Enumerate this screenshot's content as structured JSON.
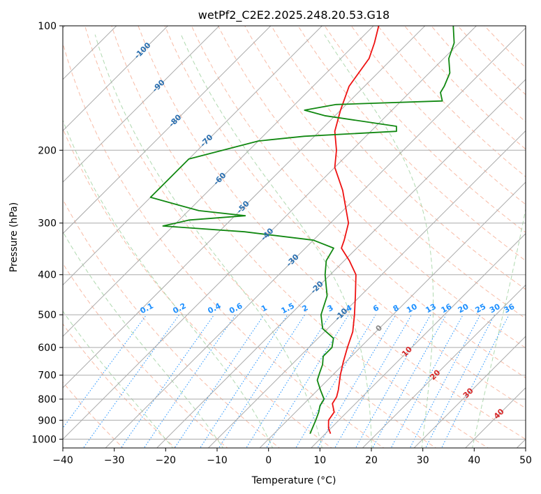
{
  "chart_data": {
    "type": "line",
    "diagram": "skew-T log-p",
    "title": "wetPf2_C2E2.2025.248.20.53.G18",
    "xlabel": "Temperature (°C)",
    "ylabel": "Pressure (hPa)",
    "xlim": [
      -40,
      50
    ],
    "ylim": [
      1050,
      100
    ],
    "x_ticks": [
      "−40",
      "−30",
      "−20",
      "−10",
      "0",
      "10",
      "20",
      "30",
      "40",
      "50"
    ],
    "y_ticks": [
      "100",
      "200",
      "300",
      "400",
      "500",
      "600",
      "700",
      "800",
      "900",
      "1000"
    ],
    "series": [
      {
        "name": "Temperature",
        "color": "#ee1111",
        "points": [
          {
            "p": 970,
            "t": 11.0
          },
          {
            "p": 940,
            "t": 9.5
          },
          {
            "p": 900,
            "t": 8.0
          },
          {
            "p": 860,
            "t": 7.5
          },
          {
            "p": 820,
            "t": 5.5
          },
          {
            "p": 790,
            "t": 5.0
          },
          {
            "p": 760,
            "t": 4.0
          },
          {
            "p": 700,
            "t": 1.5
          },
          {
            "p": 650,
            "t": -0.5
          },
          {
            "p": 600,
            "t": -2.5
          },
          {
            "p": 550,
            "t": -4.5
          },
          {
            "p": 500,
            "t": -7.5
          },
          {
            "p": 450,
            "t": -11.0
          },
          {
            "p": 400,
            "t": -15.0
          },
          {
            "p": 370,
            "t": -19.0
          },
          {
            "p": 345,
            "t": -23.0
          },
          {
            "p": 330,
            "t": -24.0
          },
          {
            "p": 300,
            "t": -26.5
          },
          {
            "p": 250,
            "t": -34.0
          },
          {
            "p": 220,
            "t": -40.0
          },
          {
            "p": 200,
            "t": -43.0
          },
          {
            "p": 180,
            "t": -47.0
          },
          {
            "p": 160,
            "t": -50.0
          },
          {
            "p": 140,
            "t": -53.0
          },
          {
            "p": 120,
            "t": -54.5
          },
          {
            "p": 110,
            "t": -56.5
          },
          {
            "p": 100,
            "t": -59.0
          }
        ]
      },
      {
        "name": "Dewpoint",
        "color": "#118811",
        "points": [
          {
            "p": 970,
            "t": 7.0
          },
          {
            "p": 900,
            "t": 5.5
          },
          {
            "p": 860,
            "t": 4.5
          },
          {
            "p": 830,
            "t": 3.5
          },
          {
            "p": 800,
            "t": 3.0
          },
          {
            "p": 760,
            "t": 0.5
          },
          {
            "p": 720,
            "t": -2.0
          },
          {
            "p": 690,
            "t": -3.0
          },
          {
            "p": 660,
            "t": -4.0
          },
          {
            "p": 630,
            "t": -5.5
          },
          {
            "p": 600,
            "t": -5.5
          },
          {
            "p": 570,
            "t": -7.0
          },
          {
            "p": 540,
            "t": -11.0
          },
          {
            "p": 500,
            "t": -14.0
          },
          {
            "p": 450,
            "t": -16.5
          },
          {
            "p": 400,
            "t": -21.0
          },
          {
            "p": 370,
            "t": -23.5
          },
          {
            "p": 345,
            "t": -24.5
          },
          {
            "p": 330,
            "t": -30.0
          },
          {
            "p": 315,
            "t": -45.0
          },
          {
            "p": 305,
            "t": -62.0
          },
          {
            "p": 295,
            "t": -58.0
          },
          {
            "p": 288,
            "t": -48.0
          },
          {
            "p": 280,
            "t": -58.0
          },
          {
            "p": 260,
            "t": -70.0
          },
          {
            "p": 210,
            "t": -70.0
          },
          {
            "p": 190,
            "t": -60.0
          },
          {
            "p": 185,
            "t": -52.0
          },
          {
            "p": 180,
            "t": -35.0
          },
          {
            "p": 175,
            "t": -36.0
          },
          {
            "p": 165,
            "t": -52.0
          },
          {
            "p": 160,
            "t": -57.0
          },
          {
            "p": 155,
            "t": -52.0
          },
          {
            "p": 152,
            "t": -32.0
          },
          {
            "p": 145,
            "t": -34.0
          },
          {
            "p": 140,
            "t": -34.5
          },
          {
            "p": 130,
            "t": -36.0
          },
          {
            "p": 120,
            "t": -39.0
          },
          {
            "p": 110,
            "t": -41.0
          },
          {
            "p": 100,
            "t": -44.5
          }
        ]
      }
    ],
    "dry_adiabats_c": [
      -30,
      -20,
      -10,
      0,
      10,
      20,
      30,
      40,
      50,
      60,
      70,
      80,
      90,
      100,
      110,
      120,
      130,
      140,
      150,
      160,
      170,
      180
    ],
    "moist_adiabats_c": [
      -20,
      -10,
      0,
      10,
      20,
      30,
      40
    ],
    "mixing_ratios": [
      "0.1",
      "0.2",
      "0.4",
      "0.6",
      "1",
      "1.5",
      "2",
      "3",
      "4",
      "6",
      "8",
      "10",
      "13",
      "16",
      "20",
      "25",
      "30",
      "36"
    ],
    "isotherm_labels": [
      "-100",
      "-90",
      "-80",
      "-70",
      "-60",
      "-50",
      "-40",
      "-30",
      "-20",
      "-10",
      "0",
      "10",
      "20",
      "30",
      "40"
    ],
    "colors": {
      "isotherm_cold": "#2a6fb0",
      "isotherm_zero": "#888888",
      "isotherm_warm": "#d62728",
      "mixing_ratio": "#1e90ff",
      "dry_adiabat": "#f5a68a",
      "moist_adiabat": "#9ccf9c"
    }
  }
}
